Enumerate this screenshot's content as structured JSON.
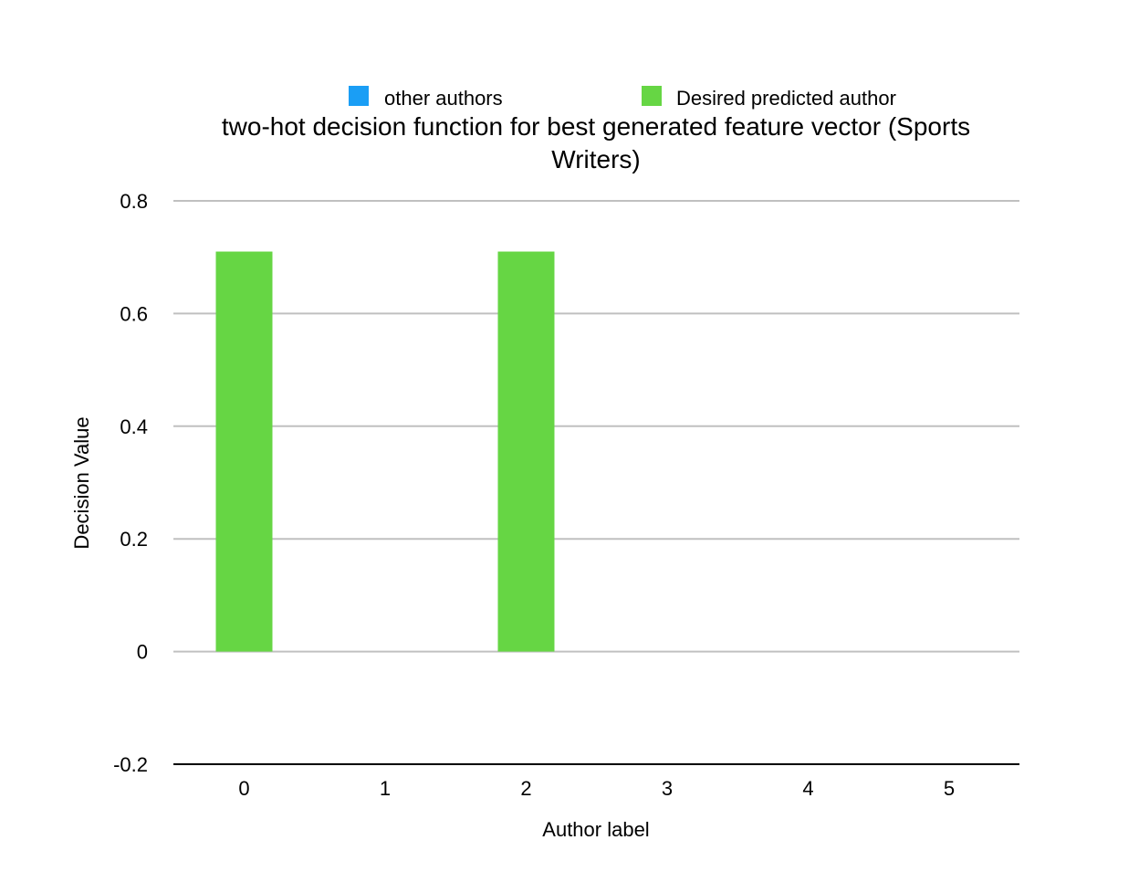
{
  "chart_data": {
    "type": "bar",
    "title_lines": [
      "two-hot decision function for best generated feature vector (Sports",
      "Writers)"
    ],
    "xlabel": "Author label",
    "ylabel": "Decision Value",
    "categories": [
      "0",
      "1",
      "2",
      "3",
      "4",
      "5"
    ],
    "ylim": [
      -0.2,
      0.8
    ],
    "yticks": [
      "0.8",
      "0.6",
      "0.4",
      "0.2",
      "0",
      "-0.2"
    ],
    "grid": true,
    "legend_position": "top",
    "series": [
      {
        "name": "other authors",
        "color": "#1a9ef5",
        "values": [
          0,
          0,
          0,
          0,
          0,
          0
        ]
      },
      {
        "name": "Desired predicted author",
        "color": "#66d644",
        "values": [
          0.71,
          0,
          0.71,
          0,
          0,
          0
        ]
      }
    ]
  }
}
